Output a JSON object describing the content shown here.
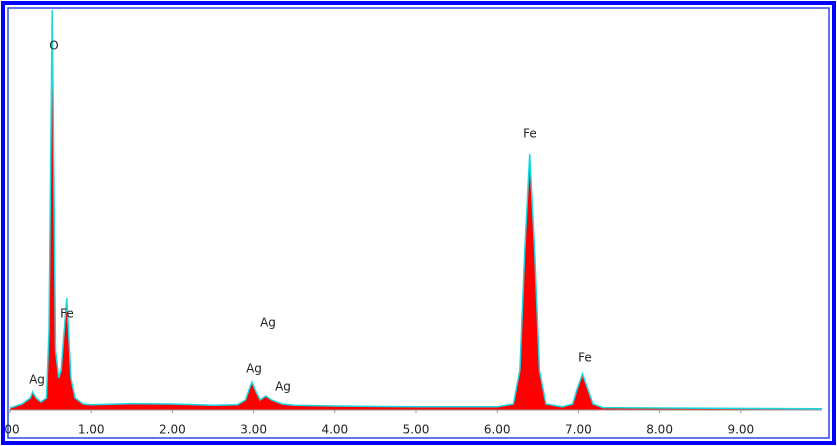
{
  "chart_data": {
    "type": "area",
    "x": [
      0.0,
      0.15,
      0.25,
      0.28,
      0.32,
      0.38,
      0.45,
      0.48,
      0.5,
      0.52,
      0.54,
      0.56,
      0.6,
      0.63,
      0.66,
      0.7,
      0.72,
      0.75,
      0.8,
      0.9,
      1.0,
      1.5,
      2.0,
      2.5,
      2.8,
      2.9,
      2.96,
      2.98,
      3.02,
      3.08,
      3.15,
      3.22,
      3.35,
      3.5,
      4.0,
      5.0,
      6.0,
      6.2,
      6.28,
      6.34,
      6.4,
      6.46,
      6.52,
      6.6,
      6.8,
      6.93,
      6.98,
      7.05,
      7.12,
      7.18,
      7.3,
      8.0,
      9.0,
      10.0
    ],
    "values": [
      0.5,
      1.5,
      3,
      4.5,
      3,
      2,
      3,
      20,
      60,
      100,
      60,
      15,
      8,
      10,
      18,
      28,
      20,
      8,
      3,
      1.5,
      1.3,
      1.6,
      1.5,
      1.2,
      1.3,
      2.5,
      6,
      7,
      5,
      2.5,
      3.5,
      2.5,
      1.5,
      1.2,
      1,
      0.8,
      0.8,
      1.5,
      10,
      40,
      64,
      40,
      10,
      1.5,
      0.8,
      1.5,
      5,
      9,
      5,
      1.5,
      0.6,
      0.5,
      0.4,
      0.3
    ],
    "color": "#ff0000",
    "line_color": "#19d8e0",
    "xlim": [
      0,
      10
    ],
    "ylim": [
      0,
      100
    ],
    "xticks": [
      {
        "value": 0,
        "label": "00"
      },
      {
        "value": 1,
        "label": "1.00"
      },
      {
        "value": 2,
        "label": "2.00"
      },
      {
        "value": 3,
        "label": "3.00"
      },
      {
        "value": 4,
        "label": "4.00"
      },
      {
        "value": 5,
        "label": "5.00"
      },
      {
        "value": 6,
        "label": "6.00"
      },
      {
        "value": 7,
        "label": "7.00"
      },
      {
        "value": 8,
        "label": "8.00"
      },
      {
        "value": 9,
        "label": "9.00"
      }
    ],
    "annotations": [
      "O",
      "Fe",
      "Ag",
      "Ag",
      "Ag",
      "Ag",
      "Fe",
      "Fe"
    ]
  }
}
